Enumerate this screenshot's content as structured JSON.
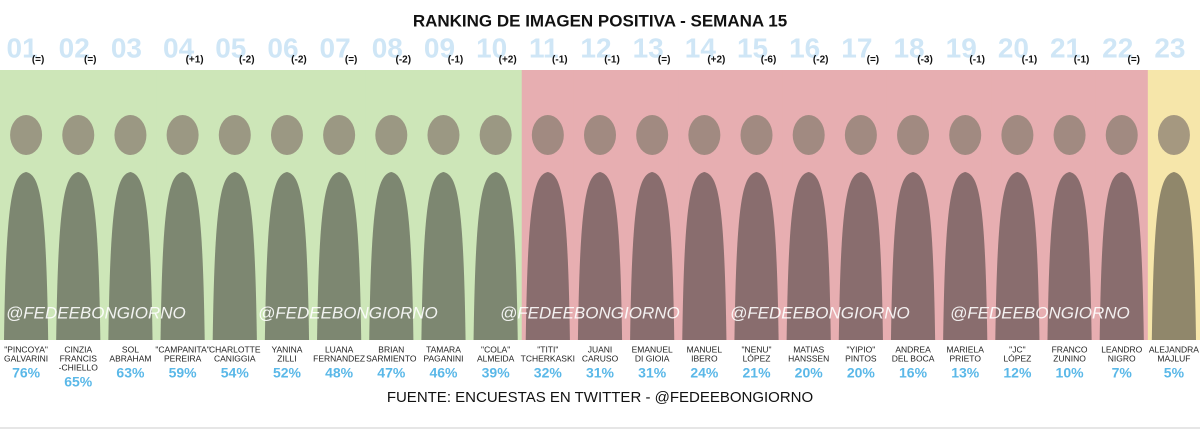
{
  "header": {
    "title": "RANKING DE IMAGEN POSITIVA - SEMANA 15"
  },
  "watermark": "@FEDEEBONGIORNO",
  "entries": [
    {
      "rank": "01",
      "change": "(=)",
      "name": [
        "\"PINCOYA\"",
        "GALVARINI"
      ],
      "percent": "76%",
      "color": "#cde6b8"
    },
    {
      "rank": "02",
      "change": "(=)",
      "name": [
        "CINZIA",
        "FRANCIS",
        "-CHIELLO"
      ],
      "percent": "65%",
      "color": "#cde6b8"
    },
    {
      "rank": "03",
      "name": [
        "SOL",
        "ABRAHAM"
      ],
      "percent": "63%",
      "color": "#cde6b8"
    },
    {
      "rank": "04",
      "change": "(+1)",
      "name": [
        "\"CAMPANITA\"",
        "PEREIRA"
      ],
      "percent": "59%",
      "color": "#cde6b8"
    },
    {
      "rank": "05",
      "change": "(-2)",
      "name": [
        "CHARLOTTE",
        "CANIGGIA"
      ],
      "percent": "54%",
      "color": "#cde6b8"
    },
    {
      "rank": "06",
      "change": "(-2)",
      "name": [
        "YANINA",
        "ZILLI"
      ],
      "percent": "52%",
      "color": "#cde6b8"
    },
    {
      "rank": "07",
      "change": "(=)",
      "name": [
        "LUANA",
        "FERNANDEZ"
      ],
      "percent": "48%",
      "color": "#cde6b8"
    },
    {
      "rank": "08",
      "change": "(-2)",
      "name": [
        "BRIAN",
        "SARMIENTO"
      ],
      "percent": "47%",
      "color": "#cde6b8"
    },
    {
      "rank": "09",
      "change": "(-1)",
      "name": [
        "TAMARA",
        "PAGANINI"
      ],
      "percent": "46%",
      "color": "#cde6b8"
    },
    {
      "rank": "10",
      "change": "(+2)",
      "name": [
        "\"COLA\"",
        "ALMEIDA"
      ],
      "percent": "39%",
      "color": "#cde6b8"
    },
    {
      "rank": "11",
      "change": "(-1)",
      "name": [
        "\"TITI\"",
        "TCHERKASKI"
      ],
      "percent": "32%",
      "color": "#e7aeb1"
    },
    {
      "rank": "12",
      "change": "(-1)",
      "name": [
        "JUANI",
        "CARUSO"
      ],
      "percent": "31%",
      "color": "#e7aeb1"
    },
    {
      "rank": "13",
      "change": "(=)",
      "name": [
        "EMANUEL",
        "DI GIOIA"
      ],
      "percent": "31%",
      "color": "#e7aeb1"
    },
    {
      "rank": "14",
      "change": "(+2)",
      "name": [
        "MANUEL",
        "IBERO"
      ],
      "percent": "24%",
      "color": "#e7aeb1"
    },
    {
      "rank": "15",
      "change": "(-6)",
      "name": [
        "\"NENU\"",
        "LÓPEZ"
      ],
      "percent": "21%",
      "color": "#e7aeb1"
    },
    {
      "rank": "16",
      "change": "(-2)",
      "name": [
        "MATIAS",
        "HANSSEN"
      ],
      "percent": "20%",
      "color": "#e7aeb1"
    },
    {
      "rank": "17",
      "change": "(=)",
      "name": [
        "\"YIPIO\"",
        "PINTOS"
      ],
      "percent": "20%",
      "color": "#e7aeb1"
    },
    {
      "rank": "18",
      "change": "(-3)",
      "name": [
        "ANDREA",
        "DEL BOCA"
      ],
      "percent": "16%",
      "color": "#e7aeb1"
    },
    {
      "rank": "19",
      "change": "(-1)",
      "name": [
        "MARIELA",
        "PRIETO"
      ],
      "percent": "13%",
      "color": "#e7aeb1"
    },
    {
      "rank": "20",
      "change": "(-1)",
      "name": [
        "\"JC\"",
        "LÓPEZ"
      ],
      "percent": "12%",
      "color": "#e7aeb1"
    },
    {
      "rank": "21",
      "change": "(-1)",
      "name": [
        "FRANCO",
        "ZUNINO"
      ],
      "percent": "10%",
      "color": "#e7aeb1"
    },
    {
      "rank": "22",
      "change": "(=)",
      "name": [
        "LEANDRO",
        "NIGRO"
      ],
      "percent": "7%",
      "color": "#e7aeb1"
    },
    {
      "rank": "23",
      "name": [
        "ALEJANDRA",
        "MAJLUF"
      ],
      "percent": "5%",
      "color": "#f6e6aa"
    }
  ],
  "footer": {
    "source": "FUENTE: ENCUESTAS EN TWITTER - @FEDEEBONGIORNO"
  }
}
